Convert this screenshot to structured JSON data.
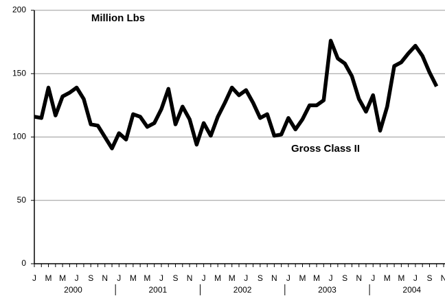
{
  "chart_data": {
    "type": "line",
    "annotations": [
      "Million Lbs",
      "Gross Class II"
    ],
    "categories": [
      "J",
      null,
      "M",
      null,
      "M",
      null,
      "J",
      null,
      "S",
      null,
      "N",
      null,
      "J",
      null,
      "M",
      null,
      "M",
      null,
      "J",
      null,
      "S",
      null,
      "N",
      null,
      "J",
      null,
      "M",
      null,
      "M",
      null,
      "J",
      null,
      "S",
      null,
      "N",
      null,
      "J",
      null,
      "M",
      null,
      "M",
      null,
      "J",
      null,
      "S",
      null,
      "N",
      null,
      "J",
      null,
      "M",
      null,
      "M",
      null,
      "J",
      null,
      "S",
      null,
      "N"
    ],
    "year_labels": [
      "2000",
      "2001",
      "2002",
      "2003",
      "2004"
    ],
    "series": [
      {
        "name": "Gross Class II",
        "color": "#000000",
        "values": [
          116,
          115,
          139,
          117,
          132,
          135,
          139,
          130,
          110,
          109,
          100,
          91,
          103,
          98,
          118,
          116,
          108,
          111,
          122,
          138,
          110,
          124,
          114,
          94,
          111,
          101,
          116,
          127,
          139,
          133,
          137,
          127,
          115,
          118,
          101,
          102,
          115,
          106,
          114,
          125,
          125,
          129,
          176,
          162,
          158,
          148,
          130,
          120,
          133,
          105,
          124,
          156,
          159,
          166,
          172,
          164,
          151,
          140,
          null
        ]
      }
    ],
    "ylim": [
      0,
      200
    ],
    "yticks": [
      0,
      50,
      100,
      150,
      200
    ],
    "grid": true
  }
}
